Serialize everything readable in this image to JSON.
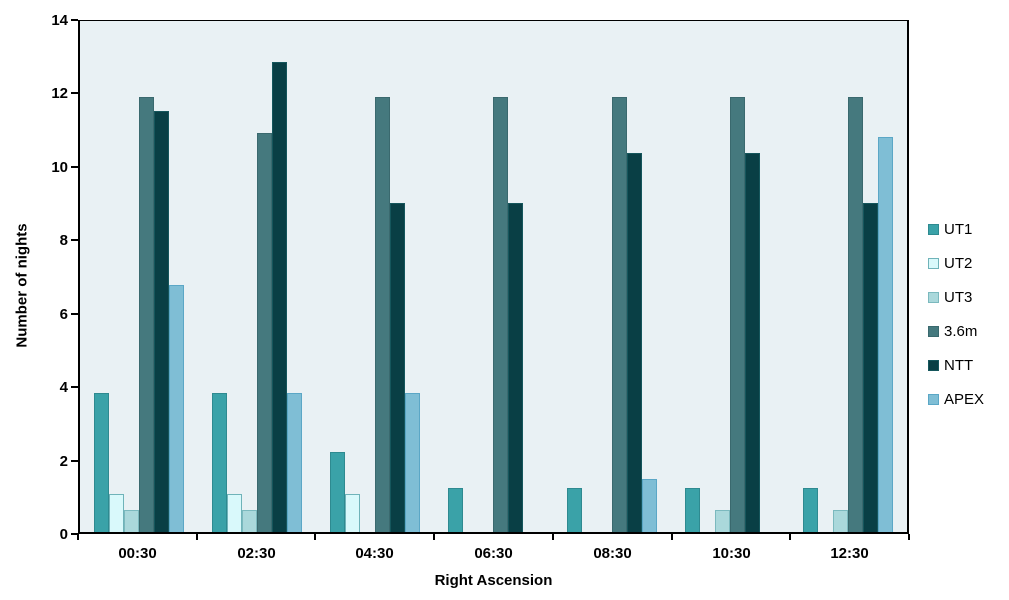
{
  "chart_data": {
    "type": "bar",
    "title": "",
    "xlabel": "Right Ascension",
    "ylabel": "Number of nights",
    "ylim": [
      0,
      14
    ],
    "yticks": [
      0,
      2,
      4,
      6,
      8,
      10,
      12,
      14
    ],
    "grid": false,
    "legend_position": "right",
    "plot_background": "#E9F1F4",
    "categories": [
      "00:30",
      "02:30",
      "04:30",
      "06:30",
      "08:30",
      "10:30",
      "12:30"
    ],
    "series": [
      {
        "name": "UT1",
        "color": "#3AA2A8",
        "border_color": "#2E8A90",
        "values": [
          3.8,
          3.8,
          2.2,
          1.2,
          1.2,
          1.2,
          1.2
        ]
      },
      {
        "name": "UT2",
        "color": "#D9F9FB",
        "border_color": "#6FB3B9",
        "values": [
          1.05,
          1.05,
          1.05,
          0,
          0,
          0,
          0
        ]
      },
      {
        "name": "UT3",
        "color": "#AAD8DB",
        "border_color": "#7BB9BE",
        "values": [
          0.6,
          0.6,
          0,
          0,
          0,
          0.6,
          0.6
        ]
      },
      {
        "name": "3.6m",
        "color": "#45797E",
        "border_color": "#3A696E",
        "values": [
          11.9,
          10.9,
          11.9,
          11.9,
          11.9,
          11.9,
          11.9
        ]
      },
      {
        "name": "NTT",
        "color": "#093F45",
        "border_color": "#15565C",
        "values": [
          11.5,
          12.85,
          9.0,
          9.0,
          10.35,
          10.35,
          9.0
        ]
      },
      {
        "name": "APEX",
        "color": "#7FBED5",
        "border_color": "#5BA7C6",
        "values": [
          6.75,
          3.8,
          3.8,
          0,
          1.45,
          0,
          10.8
        ]
      }
    ]
  }
}
